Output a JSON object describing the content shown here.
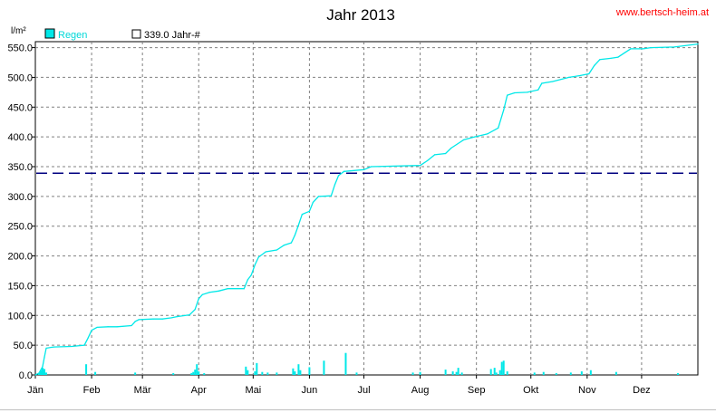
{
  "header": {
    "title": "Jahr 2013",
    "url": "www.bertsch-heim.at",
    "unit_label": "l/m²"
  },
  "legend": {
    "regen_label": "Regen",
    "avg_label": "339.0 Jahr-#"
  },
  "colors": {
    "rain": "#00e8e8",
    "average_line": "#000080",
    "grid": "#808080",
    "url": "#ff0000"
  },
  "chart_data": {
    "type": "line",
    "title": "Jahr 2013",
    "ylabel": "l/m²",
    "xlabel": "",
    "ylim": [
      0,
      560
    ],
    "xlim": [
      0,
      365
    ],
    "grid": true,
    "legend_position": "top-left",
    "y_ticks": [
      "0.0",
      "50.0",
      "100.0",
      "150.0",
      "200.0",
      "250.0",
      "300.0",
      "350.0",
      "400.0",
      "450.0",
      "500.0",
      "550.0"
    ],
    "x_ticks": [
      {
        "label": "Jän",
        "day": 0
      },
      {
        "label": "Feb",
        "day": 31
      },
      {
        "label": "Mär",
        "day": 59
      },
      {
        "label": "Apr",
        "day": 90
      },
      {
        "label": "Mai",
        "day": 120
      },
      {
        "label": "Jun",
        "day": 151
      },
      {
        "label": "Jul",
        "day": 181
      },
      {
        "label": "Aug",
        "day": 212
      },
      {
        "label": "Sep",
        "day": 243
      },
      {
        "label": "Okt",
        "day": 273
      },
      {
        "label": "Nov",
        "day": 304
      },
      {
        "label": "Dez",
        "day": 334
      }
    ],
    "series": [
      {
        "name": "Regen",
        "kind": "cumulative",
        "points": [
          [
            0,
            0
          ],
          [
            2,
            3
          ],
          [
            4,
            14
          ],
          [
            5,
            30
          ],
          [
            6,
            45
          ],
          [
            10,
            47
          ],
          [
            20,
            48
          ],
          [
            27,
            50
          ],
          [
            29,
            62
          ],
          [
            31,
            75
          ],
          [
            34,
            80
          ],
          [
            40,
            81
          ],
          [
            45,
            81
          ],
          [
            53,
            83
          ],
          [
            55,
            90
          ],
          [
            57,
            93
          ],
          [
            65,
            94
          ],
          [
            70,
            94
          ],
          [
            75,
            96
          ],
          [
            78,
            98
          ],
          [
            85,
            101
          ],
          [
            88,
            110
          ],
          [
            90,
            128
          ],
          [
            92,
            135
          ],
          [
            96,
            139
          ],
          [
            101,
            141
          ],
          [
            106,
            145
          ],
          [
            115,
            145
          ],
          [
            117,
            160
          ],
          [
            119,
            168
          ],
          [
            121,
            185
          ],
          [
            123,
            198
          ],
          [
            127,
            207
          ],
          [
            133,
            210
          ],
          [
            137,
            218
          ],
          [
            141,
            222
          ],
          [
            143,
            235
          ],
          [
            145,
            252
          ],
          [
            147,
            270
          ],
          [
            151,
            275
          ],
          [
            153,
            290
          ],
          [
            156,
            300
          ],
          [
            163,
            301
          ],
          [
            165,
            320
          ],
          [
            167,
            335
          ],
          [
            170,
            342
          ],
          [
            181,
            345
          ],
          [
            185,
            350
          ],
          [
            212,
            352
          ],
          [
            216,
            360
          ],
          [
            220,
            370
          ],
          [
            226,
            372
          ],
          [
            229,
            381
          ],
          [
            236,
            395
          ],
          [
            242,
            400
          ],
          [
            249,
            405
          ],
          [
            255,
            415
          ],
          [
            258,
            445
          ],
          [
            260,
            470
          ],
          [
            264,
            474
          ],
          [
            271,
            475
          ],
          [
            277,
            479
          ],
          [
            279,
            490
          ],
          [
            285,
            493
          ],
          [
            294,
            500
          ],
          [
            300,
            503
          ],
          [
            305,
            506
          ],
          [
            308,
            520
          ],
          [
            311,
            530
          ],
          [
            317,
            532
          ],
          [
            321,
            534
          ],
          [
            325,
            542
          ],
          [
            328,
            548
          ],
          [
            335,
            548
          ],
          [
            339,
            550
          ],
          [
            352,
            551
          ],
          [
            360,
            554
          ],
          [
            365,
            556
          ]
        ]
      },
      {
        "name": "Regen",
        "kind": "daily",
        "bars": [
          [
            2,
            3
          ],
          [
            3,
            8
          ],
          [
            4,
            12
          ],
          [
            5,
            10
          ],
          [
            6,
            4
          ],
          [
            28,
            18
          ],
          [
            33,
            5
          ],
          [
            55,
            4
          ],
          [
            76,
            3
          ],
          [
            86,
            3
          ],
          [
            87,
            5
          ],
          [
            88,
            9
          ],
          [
            89,
            18
          ],
          [
            90,
            6
          ],
          [
            93,
            3
          ],
          [
            116,
            14
          ],
          [
            117,
            8
          ],
          [
            121,
            6
          ],
          [
            122,
            20
          ],
          [
            125,
            5
          ],
          [
            128,
            4
          ],
          [
            133,
            4
          ],
          [
            142,
            11
          ],
          [
            143,
            6
          ],
          [
            145,
            18
          ],
          [
            146,
            8
          ],
          [
            151,
            13
          ],
          [
            159,
            24
          ],
          [
            171,
            37
          ],
          [
            177,
            4
          ],
          [
            208,
            4
          ],
          [
            212,
            5
          ],
          [
            226,
            9
          ],
          [
            230,
            6
          ],
          [
            232,
            5
          ],
          [
            233,
            12
          ],
          [
            235,
            4
          ],
          [
            251,
            10
          ],
          [
            253,
            12
          ],
          [
            254,
            4
          ],
          [
            256,
            8
          ],
          [
            257,
            22
          ],
          [
            258,
            24
          ],
          [
            260,
            6
          ],
          [
            275,
            4
          ],
          [
            280,
            5
          ],
          [
            287,
            3
          ],
          [
            295,
            4
          ],
          [
            301,
            6
          ],
          [
            306,
            8
          ],
          [
            320,
            5
          ],
          [
            354,
            3
          ]
        ]
      }
    ],
    "reference_lines": [
      {
        "label": "339.0 Jahr-#",
        "value": 339.0,
        "style": "dashed"
      }
    ]
  }
}
